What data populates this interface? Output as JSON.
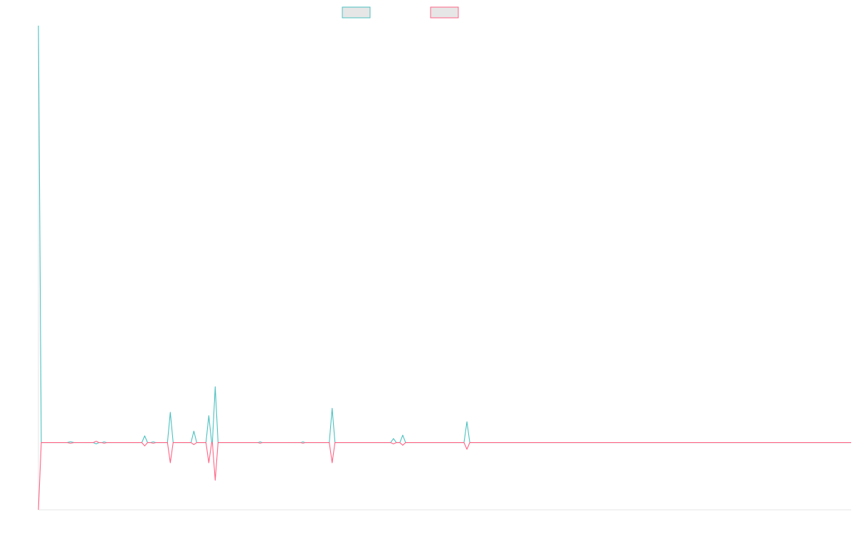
{
  "chart_data": {
    "type": "line",
    "title": "",
    "xlabel": "",
    "ylabel": "",
    "grid": false,
    "legend": "top-center",
    "ylim": [
      -100,
      620
    ],
    "xlim": [
      0,
      1140
    ],
    "series": [
      {
        "color": "#4bc0c0",
        "fill": "#e6e6e6",
        "points": [
          [
            0,
            620
          ],
          [
            4,
            0
          ],
          [
            40,
            0
          ],
          [
            45,
            1
          ],
          [
            50,
            0
          ],
          [
            77,
            0
          ],
          [
            81,
            -2
          ],
          [
            85,
            0
          ],
          [
            89,
            0
          ],
          [
            92,
            1
          ],
          [
            96,
            0
          ],
          [
            145,
            0
          ],
          [
            149,
            10
          ],
          [
            153,
            0
          ],
          [
            157,
            0
          ],
          [
            161,
            1
          ],
          [
            165,
            0
          ],
          [
            181,
            0
          ],
          [
            185,
            45
          ],
          [
            189,
            0
          ],
          [
            214,
            0
          ],
          [
            218,
            17
          ],
          [
            222,
            0
          ],
          [
            235,
            0
          ],
          [
            239,
            40
          ],
          [
            243,
            0
          ],
          [
            244,
            0
          ],
          [
            248,
            83
          ],
          [
            252,
            0
          ],
          [
            308,
            0
          ],
          [
            311,
            1
          ],
          [
            314,
            0
          ],
          [
            368,
            0
          ],
          [
            371,
            1
          ],
          [
            374,
            0
          ],
          [
            408,
            0
          ],
          [
            412,
            51
          ],
          [
            416,
            0
          ],
          [
            494,
            0
          ],
          [
            498,
            6
          ],
          [
            502,
            0
          ],
          [
            507,
            0
          ],
          [
            511,
            11
          ],
          [
            515,
            0
          ],
          [
            597,
            0
          ],
          [
            601,
            31
          ],
          [
            605,
            0
          ],
          [
            1140,
            0
          ]
        ]
      },
      {
        "color": "#ff6384",
        "fill": "#e6e6e6",
        "points": [
          [
            0,
            -100
          ],
          [
            4,
            0
          ],
          [
            40,
            0
          ],
          [
            45,
            -1
          ],
          [
            50,
            0
          ],
          [
            77,
            0
          ],
          [
            81,
            2
          ],
          [
            85,
            0
          ],
          [
            89,
            0
          ],
          [
            92,
            -1
          ],
          [
            96,
            0
          ],
          [
            145,
            0
          ],
          [
            149,
            -5
          ],
          [
            153,
            0
          ],
          [
            157,
            0
          ],
          [
            161,
            -1
          ],
          [
            165,
            0
          ],
          [
            181,
            0
          ],
          [
            185,
            -30
          ],
          [
            189,
            0
          ],
          [
            214,
            0
          ],
          [
            218,
            -3
          ],
          [
            222,
            0
          ],
          [
            235,
            0
          ],
          [
            239,
            -30
          ],
          [
            243,
            0
          ],
          [
            244,
            0
          ],
          [
            248,
            -56
          ],
          [
            252,
            0
          ],
          [
            308,
            0
          ],
          [
            311,
            -1
          ],
          [
            314,
            0
          ],
          [
            368,
            0
          ],
          [
            371,
            -1
          ],
          [
            374,
            0
          ],
          [
            408,
            0
          ],
          [
            412,
            -30
          ],
          [
            416,
            0
          ],
          [
            494,
            0
          ],
          [
            498,
            -2
          ],
          [
            502,
            0
          ],
          [
            507,
            0
          ],
          [
            511,
            -4
          ],
          [
            515,
            0
          ],
          [
            597,
            0
          ],
          [
            601,
            -10
          ],
          [
            605,
            0
          ],
          [
            1140,
            0
          ]
        ]
      }
    ]
  }
}
